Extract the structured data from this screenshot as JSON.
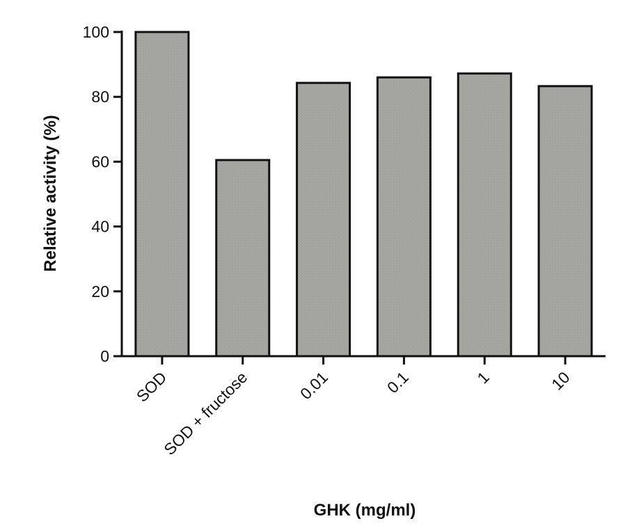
{
  "chart_data": {
    "type": "bar",
    "title": "",
    "xlabel": "GHK (mg/ml)",
    "ylabel": "Relative activity (%)",
    "categories": [
      "SOD",
      "SOD + fructose",
      "0.01",
      "0.1",
      "1",
      "10"
    ],
    "values": [
      100,
      60.5,
      84.3,
      86,
      87.2,
      83.3
    ],
    "ylim": [
      0,
      100
    ],
    "yticks": [
      "0",
      "20",
      "40",
      "60",
      "80",
      "100"
    ],
    "grid": false,
    "bar_color": "#a9aaa5",
    "edge_color": "#111111"
  }
}
